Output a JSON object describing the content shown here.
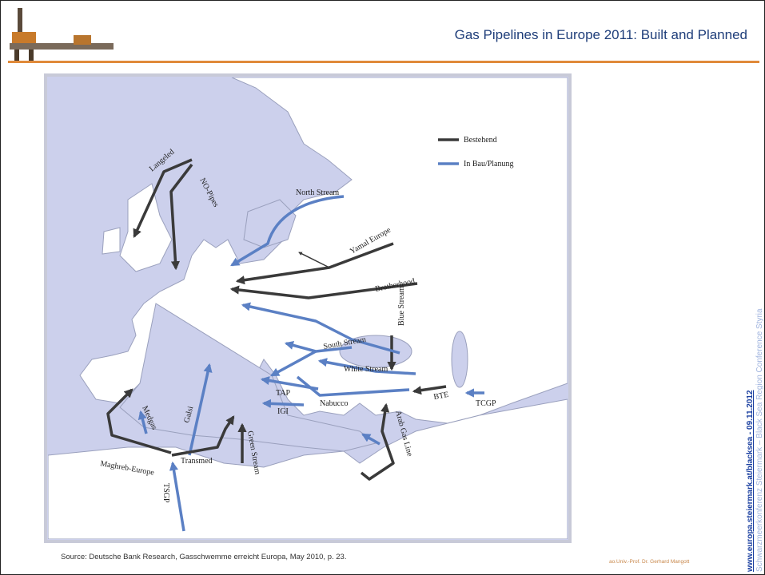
{
  "header": {
    "title": "Gas Pipelines in Europe 2011: Built and Planned"
  },
  "map": {
    "legend": [
      "Bestehend",
      "In Bau/Planung"
    ],
    "labels": [
      "Langeled",
      "NO-Pipes",
      "North Stream",
      "Yamal Europe",
      "Brotherhood",
      "Blue Stream",
      "South Stream",
      "White Stream",
      "TAP",
      "IGI",
      "Nabucco",
      "BTE",
      "TCGP",
      "Medgas",
      "Galsi",
      "Maghreb-Europe",
      "Transmed",
      "Green Stream",
      "TSGP",
      "Arab Gas Line"
    ]
  },
  "source": "Source: Deutsche Bank Research, Gasschwemme  erreicht Europa, May 2010, p. 23.",
  "footer": {
    "author": "ao.Univ.-Prof. Dr. Gerhard Mangott"
  },
  "sidebar": {
    "link": "www.europa.steiermark.at/blacksea - 09.11.2012",
    "conference": "Schwarzmeerkonferenz Steiermark – Black Sea Region Conference Styria"
  }
}
